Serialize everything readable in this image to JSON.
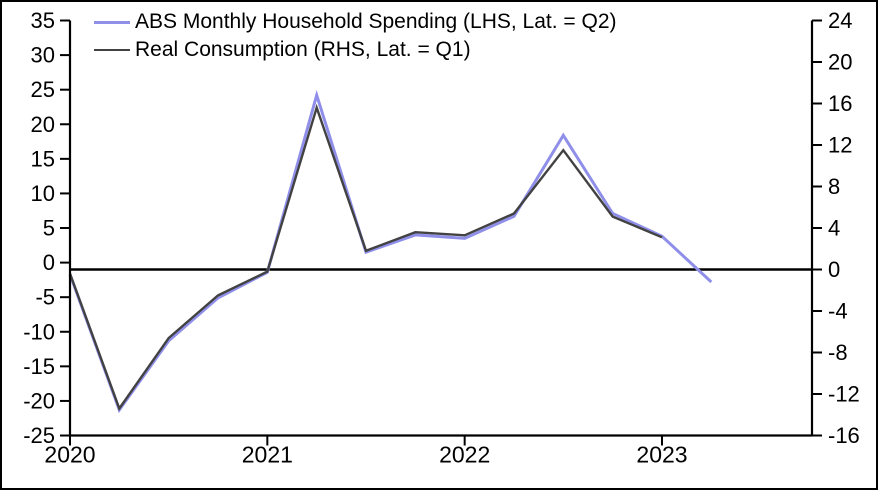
{
  "chart_data": {
    "type": "line",
    "title": "",
    "xlabel": "",
    "ylabel_left": "",
    "ylabel_right": "",
    "grid": false,
    "zero_line": true,
    "legend_position": "top-left",
    "x_categories": [
      "2020 Q1",
      "2020 Q2",
      "2020 Q3",
      "2020 Q4",
      "2021 Q1",
      "2021 Q2",
      "2021 Q3",
      "2021 Q4",
      "2022 Q1",
      "2022 Q2",
      "2022 Q3",
      "2022 Q4",
      "2023 Q1",
      "2023 Q2"
    ],
    "x_tick_labels": [
      "2020",
      "2021",
      "2022",
      "2023"
    ],
    "series": [
      {
        "name": "ABS Monthly Household Spending (LHS, Lat. = Q2)",
        "axis": "left",
        "color": "#8f8fea",
        "values": [
          -1.7,
          -21.3,
          -11.3,
          -5.1,
          -1.4,
          24.2,
          1.5,
          4.0,
          3.5,
          6.7,
          18.4,
          7.1,
          3.8,
          -2.8
        ]
      },
      {
        "name": "Real Consumption (RHS, Lat. = Q1)",
        "axis": "right",
        "color": "#424242",
        "values": [
          -0.4,
          -13.4,
          -6.6,
          -2.5,
          -0.2,
          15.6,
          1.8,
          3.6,
          3.3,
          5.4,
          11.5,
          5.1,
          3.1,
          null
        ]
      }
    ],
    "axes": {
      "left": {
        "ticks": [
          35,
          30,
          25,
          20,
          15,
          10,
          5,
          0,
          -5,
          -10,
          -15,
          -20,
          -25
        ],
        "range": [
          -25,
          35
        ]
      },
      "right": {
        "ticks": [
          24,
          20,
          16,
          12,
          8,
          4,
          0,
          -4,
          -8,
          -12,
          -16
        ],
        "range": [
          -16,
          24
        ]
      }
    }
  },
  "colors": {
    "background": "#ffffff",
    "axis": "#000000",
    "series_lhs": "#8f8fea",
    "series_rhs": "#424242"
  }
}
